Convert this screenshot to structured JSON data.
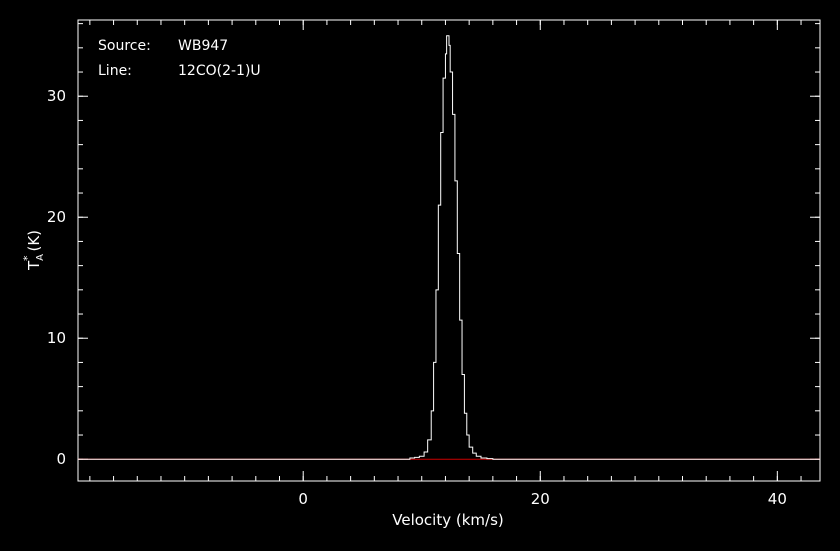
{
  "chart_data": {
    "type": "line",
    "style": "step",
    "background": "#000000",
    "foreground": "#ffffff",
    "baseline_color": "#cc0000",
    "annotations": [
      {
        "key": "Source:",
        "value": "WB947"
      },
      {
        "key": "Line:",
        "value": "12CO(2-1)U"
      }
    ],
    "xlabel": "Velocity (km/s)",
    "ylabel": {
      "base": "T",
      "sup": "*",
      "sub": "A",
      "unit": "(K)"
    },
    "xlim": [
      -19,
      43.6
    ],
    "ylim": [
      -1.8,
      36.3
    ],
    "x_ticks": [
      0,
      20,
      40
    ],
    "x_ticklabels": [
      "0",
      "20",
      "40"
    ],
    "x_minor_step": 2,
    "y_ticks": [
      0,
      10,
      20,
      30
    ],
    "y_ticklabels": [
      "0",
      "10",
      "20",
      "30"
    ],
    "y_minor_step": 2,
    "grid": false,
    "baseline_y": 0,
    "series": [
      {
        "x": [
          8.5,
          9.0,
          9.4,
          9.8,
          10.2,
          10.5,
          10.8,
          11.0,
          11.2,
          11.4,
          11.6,
          11.8,
          12.0,
          12.1,
          12.3,
          12.4,
          12.6,
          12.8,
          13.0,
          13.2,
          13.4,
          13.6,
          13.8,
          14.0,
          14.3,
          14.6,
          15.0,
          15.5,
          16.0
        ],
        "y": [
          0.0,
          0.1,
          0.15,
          0.25,
          0.6,
          1.6,
          4.0,
          8.0,
          14.0,
          21.0,
          27.0,
          31.5,
          33.5,
          35.0,
          34.2,
          32.0,
          28.5,
          23.0,
          17.0,
          11.5,
          7.0,
          3.8,
          2.0,
          1.0,
          0.5,
          0.25,
          0.1,
          0.05,
          0.0
        ]
      }
    ]
  }
}
